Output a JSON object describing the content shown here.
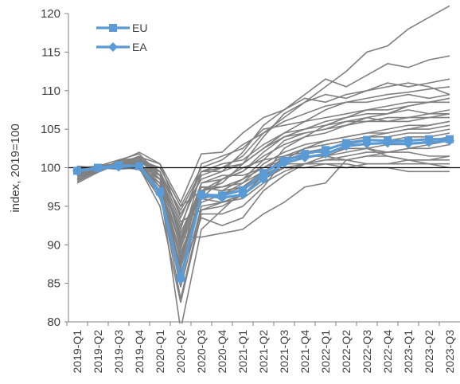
{
  "chart_data": {
    "type": "line",
    "ylabel": "index, 2019=100",
    "xlabel": "",
    "ylim": [
      80,
      120
    ],
    "yticks": [
      "80",
      "85",
      "90",
      "95",
      "100",
      "105",
      "110",
      "115",
      "120"
    ],
    "categories": [
      "2019-Q1",
      "2019-Q2",
      "2019-Q3",
      "2019-Q4",
      "2020-Q1",
      "2020-Q2",
      "2020-Q3",
      "2020-Q4",
      "2021-Q1",
      "2021-Q2",
      "2021-Q3",
      "2021-Q4",
      "2022-Q1",
      "2022-Q2",
      "2022-Q3",
      "2022-Q4",
      "2023-Q1",
      "2023-Q2",
      "2023-Q3"
    ],
    "reference_line": 100,
    "legend_position": "top-left",
    "colors": {
      "eu": "#5b9bd5",
      "ea": "#5b9bd5",
      "countries": "#808080",
      "reference": "#000000"
    },
    "series": [
      {
        "name": "EU",
        "marker": "square",
        "values": [
          99.6,
          100.0,
          100.3,
          100.2,
          96.9,
          85.7,
          96.5,
          96.4,
          97.1,
          99.3,
          100.9,
          101.8,
          102.3,
          103.2,
          103.6,
          103.5,
          103.5,
          103.7,
          103.7
        ]
      },
      {
        "name": "EA",
        "marker": "diamond",
        "values": [
          99.6,
          99.9,
          100.1,
          100.2,
          96.6,
          85.5,
          96.4,
          96.1,
          96.5,
          98.5,
          100.6,
          101.3,
          101.8,
          102.8,
          103.1,
          103.2,
          103.1,
          103.3,
          103.5
        ]
      }
    ],
    "country_lines": [
      [
        98.0,
        99.4,
        100.5,
        101.5,
        99.5,
        94.0,
        98.5,
        99.5,
        100.5,
        102.5,
        104.5,
        106.0,
        107.5,
        108.5,
        109.0,
        109.5,
        109.8,
        110.2,
        110.5
      ],
      [
        99.0,
        100.2,
        101.0,
        101.8,
        99.0,
        92.5,
        99.0,
        100.0,
        101.5,
        104.5,
        106.5,
        108.5,
        110.5,
        112.5,
        115.0,
        115.8,
        118.0,
        119.5,
        121.0
      ],
      [
        98.5,
        99.8,
        100.8,
        102.0,
        100.5,
        95.5,
        101.8,
        102.0,
        104.5,
        106.5,
        107.5,
        109.5,
        111.5,
        110.5,
        112.0,
        113.5,
        113.0,
        114.0,
        114.5
      ],
      [
        99.5,
        100.3,
        100.5,
        100.3,
        97.5,
        90.0,
        99.5,
        99.5,
        102.0,
        105.5,
        107.5,
        109.0,
        108.5,
        109.5,
        110.0,
        110.5,
        111.0,
        110.5,
        109.5
      ],
      [
        99.2,
        99.8,
        100.2,
        100.8,
        100.0,
        95.0,
        100.0,
        101.0,
        103.0,
        104.5,
        106.0,
        107.0,
        108.0,
        108.5,
        108.5,
        109.0,
        109.5,
        109.0,
        109.5
      ],
      [
        99.8,
        100.0,
        100.3,
        100.0,
        95.0,
        82.5,
        94.0,
        94.0,
        95.0,
        97.5,
        101.0,
        102.5,
        103.5,
        104.0,
        104.5,
        105.0,
        105.5,
        105.5,
        106.0
      ],
      [
        99.5,
        100.0,
        100.2,
        100.3,
        97.5,
        79.0,
        92.0,
        94.5,
        97.0,
        99.0,
        102.5,
        104.0,
        105.5,
        106.5,
        107.0,
        107.0,
        107.5,
        107.0,
        107.5
      ],
      [
        99.0,
        99.5,
        100.5,
        101.0,
        98.5,
        88.0,
        96.0,
        98.5,
        99.5,
        102.0,
        104.0,
        104.5,
        105.0,
        106.0,
        106.5,
        107.0,
        108.0,
        108.5,
        109.0
      ],
      [
        98.8,
        99.5,
        100.6,
        101.2,
        99.5,
        91.0,
        97.5,
        97.0,
        98.5,
        100.0,
        101.5,
        102.5,
        103.0,
        103.5,
        104.0,
        104.5,
        105.0,
        105.5,
        106.0
      ],
      [
        99.4,
        100.1,
        100.0,
        100.5,
        97.0,
        84.5,
        95.0,
        95.5,
        96.0,
        98.0,
        99.5,
        100.5,
        101.0,
        101.5,
        102.0,
        102.0,
        102.5,
        102.5,
        103.0
      ],
      [
        100.0,
        100.2,
        100.0,
        99.8,
        96.5,
        88.5,
        96.0,
        95.5,
        96.5,
        99.0,
        100.5,
        101.5,
        101.5,
        102.0,
        102.5,
        103.0,
        103.0,
        103.5,
        104.0
      ],
      [
        98.2,
        99.6,
        100.9,
        101.3,
        99.0,
        91.0,
        91.0,
        91.5,
        92.0,
        94.0,
        95.5,
        97.5,
        98.0,
        101.0,
        101.5,
        102.0,
        102.5,
        103.0,
        103.5
      ],
      [
        99.7,
        100.0,
        100.2,
        100.1,
        99.5,
        93.0,
        94.5,
        95.5,
        96.5,
        98.5,
        100.0,
        100.0,
        100.5,
        100.0,
        100.5,
        100.5,
        101.0,
        101.0,
        101.5
      ],
      [
        99.6,
        100.2,
        100.3,
        99.9,
        98.0,
        88.0,
        98.0,
        99.0,
        99.0,
        100.0,
        101.0,
        101.5,
        101.5,
        101.0,
        100.5,
        100.5,
        100.5,
        100.5,
        100.5
      ],
      [
        99.3,
        99.9,
        100.4,
        100.4,
        98.0,
        86.5,
        93.5,
        92.5,
        93.5,
        97.0,
        99.0,
        100.5,
        101.5,
        102.5,
        102.5,
        101.5,
        101.0,
        100.5,
        100.0
      ],
      [
        99.9,
        100.1,
        100.1,
        99.9,
        98.5,
        91.5,
        97.5,
        97.5,
        98.0,
        99.5,
        100.5,
        100.5,
        100.5,
        100.5,
        100.0,
        100.0,
        99.5,
        99.5,
        99.5
      ],
      [
        98.6,
        99.4,
        100.6,
        101.4,
        100.5,
        93.5,
        99.5,
        100.0,
        100.5,
        102.5,
        104.0,
        105.0,
        106.0,
        106.5,
        107.5,
        107.5,
        108.0,
        108.5,
        109.0
      ],
      [
        99.1,
        99.7,
        100.3,
        100.9,
        99.5,
        90.5,
        98.0,
        98.5,
        99.5,
        101.5,
        103.0,
        104.0,
        104.5,
        105.5,
        106.0,
        106.5,
        106.5,
        107.0,
        107.0
      ],
      [
        99.5,
        100.1,
        100.1,
        100.3,
        98.0,
        87.0,
        96.0,
        96.5,
        98.0,
        100.5,
        102.0,
        103.0,
        103.5,
        104.0,
        104.5,
        104.5,
        105.0,
        105.0,
        105.5
      ],
      [
        99.0,
        99.9,
        100.4,
        100.7,
        97.5,
        89.0,
        95.5,
        96.5,
        97.5,
        99.5,
        101.0,
        102.5,
        103.0,
        103.5,
        104.0,
        104.0,
        104.5,
        104.5,
        105.0
      ],
      [
        100.2,
        100.0,
        99.8,
        100.0,
        96.0,
        87.5,
        97.0,
        97.5,
        98.5,
        101.0,
        103.5,
        104.5,
        105.0,
        105.5,
        106.5,
        106.0,
        106.0,
        106.5,
        106.5
      ],
      [
        98.4,
        99.7,
        100.7,
        101.2,
        98.5,
        92.0,
        100.5,
        101.5,
        102.5,
        105.0,
        105.5,
        106.0,
        106.5,
        107.0,
        107.5,
        108.0,
        108.5,
        108.5,
        108.5
      ],
      [
        99.2,
        99.9,
        100.3,
        100.6,
        97.0,
        83.0,
        94.5,
        95.0,
        96.5,
        99.0,
        101.5,
        102.0,
        102.5,
        103.0,
        103.5,
        103.5,
        104.0,
        104.0,
        104.5
      ],
      [
        99.7,
        100.0,
        100.1,
        100.2,
        99.0,
        94.5,
        99.5,
        100.5,
        101.0,
        103.0,
        104.5,
        105.0,
        105.5,
        106.0,
        106.0,
        106.0,
        106.5,
        106.5,
        107.0
      ],
      [
        98.9,
        99.6,
        100.5,
        101.0,
        100.0,
        95.0,
        97.0,
        98.5,
        100.0,
        101.0,
        101.5,
        102.0,
        102.0,
        102.5,
        102.5,
        102.0,
        102.0,
        101.5,
        101.5
      ],
      [
        99.4,
        100.0,
        100.2,
        100.4,
        98.5,
        90.0,
        97.5,
        97.0,
        97.5,
        99.0,
        100.0,
        100.5,
        101.0,
        101.0,
        101.5,
        101.5,
        101.0,
        101.0,
        101.0
      ],
      [
        99.0,
        99.8,
        100.3,
        100.9,
        99.0,
        89.5,
        97.0,
        98.0,
        100.5,
        104.0,
        107.0,
        108.5,
        109.5,
        109.0,
        110.0,
        111.0,
        110.5,
        111.0,
        111.5
      ]
    ]
  }
}
